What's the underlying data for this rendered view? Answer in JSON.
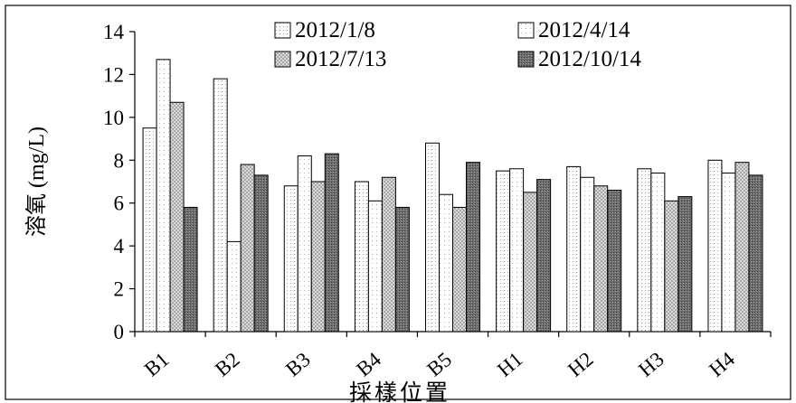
{
  "chart_data": {
    "type": "bar",
    "title": "",
    "xlabel": "採樣位置",
    "ylabel": "溶氧 (mg/L)",
    "ylim": [
      0,
      14
    ],
    "yticks": [
      0,
      2,
      4,
      6,
      8,
      10,
      12,
      14
    ],
    "grid": false,
    "legend_position": "top",
    "categories": [
      "B1",
      "B2",
      "B3",
      "B4",
      "B5",
      "H1",
      "H2",
      "H3",
      "H4"
    ],
    "series": [
      {
        "name": "2012/1/8",
        "pattern": "dots-light",
        "values": [
          9.5,
          11.8,
          6.8,
          7.0,
          8.8,
          7.5,
          7.7,
          7.6,
          8.0
        ]
      },
      {
        "name": "2012/4/14",
        "pattern": "dots-sparse",
        "values": [
          12.7,
          4.2,
          8.2,
          6.1,
          6.4,
          7.6,
          7.2,
          7.4,
          7.4
        ]
      },
      {
        "name": "2012/7/13",
        "pattern": "crosshatch",
        "values": [
          10.7,
          7.8,
          7.0,
          7.2,
          5.8,
          6.5,
          6.8,
          6.1,
          7.9
        ]
      },
      {
        "name": "2012/10/14",
        "pattern": "dense-dark",
        "values": [
          5.8,
          7.3,
          8.3,
          5.8,
          7.9,
          7.1,
          6.6,
          6.3,
          7.3
        ]
      }
    ]
  }
}
